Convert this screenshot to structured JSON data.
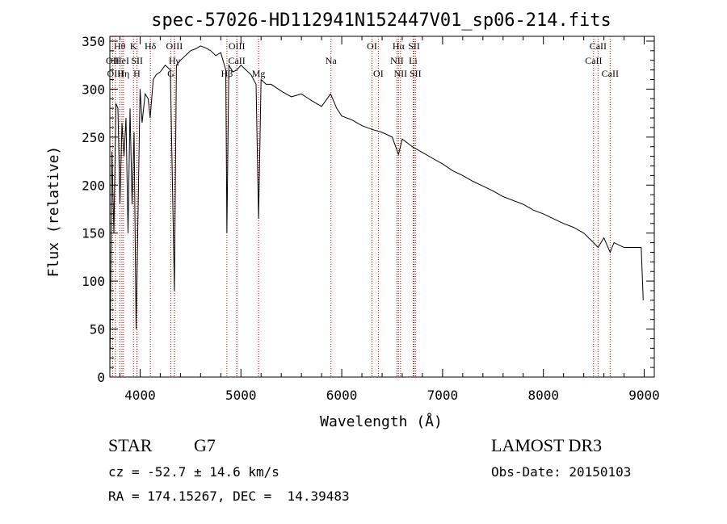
{
  "chart_data": {
    "type": "line",
    "title": "spec-57026-HD112941N152447V01_sp06-214.fits",
    "xlabel": "Wavelength (Å)",
    "ylabel": "Flux (relative)",
    "xlim": [
      3700,
      9100
    ],
    "ylim": [
      0,
      355
    ],
    "xticks": [
      4000,
      5000,
      6000,
      7000,
      8000,
      9000
    ],
    "yticks": [
      0,
      50,
      100,
      150,
      200,
      250,
      300,
      350
    ],
    "series": [
      {
        "name": "spectrum",
        "x": [
          3700,
          3720,
          3740,
          3760,
          3780,
          3800,
          3820,
          3840,
          3860,
          3880,
          3900,
          3920,
          3940,
          3960,
          3980,
          4000,
          4020,
          4050,
          4080,
          4100,
          4130,
          4160,
          4200,
          4250,
          4300,
          4340,
          4360,
          4400,
          4450,
          4500,
          4550,
          4600,
          4650,
          4700,
          4750,
          4800,
          4850,
          4861,
          4880,
          4920,
          4960,
          5000,
          5050,
          5100,
          5150,
          5175,
          5200,
          5250,
          5300,
          5400,
          5500,
          5600,
          5700,
          5800,
          5890,
          5950,
          6000,
          6100,
          6200,
          6300,
          6400,
          6500,
          6563,
          6600,
          6700,
          6800,
          6900,
          7000,
          7100,
          7200,
          7300,
          7400,
          7500,
          7600,
          7700,
          7800,
          7900,
          8000,
          8100,
          8200,
          8300,
          8400,
          8498,
          8542,
          8600,
          8662,
          8700,
          8800,
          8900,
          8970,
          8990
        ],
        "values": [
          5,
          235,
          150,
          285,
          280,
          180,
          265,
          230,
          270,
          150,
          280,
          180,
          255,
          50,
          170,
          300,
          265,
          295,
          290,
          270,
          310,
          315,
          318,
          325,
          320,
          90,
          325,
          330,
          335,
          340,
          342,
          345,
          343,
          340,
          335,
          338,
          320,
          150,
          325,
          318,
          320,
          325,
          320,
          315,
          305,
          165,
          310,
          305,
          305,
          298,
          292,
          295,
          288,
          282,
          295,
          280,
          272,
          268,
          262,
          258,
          255,
          250,
          232,
          248,
          240,
          234,
          228,
          222,
          215,
          210,
          204,
          199,
          194,
          188,
          184,
          180,
          174,
          170,
          165,
          160,
          156,
          150,
          140,
          135,
          145,
          130,
          140,
          135,
          135,
          135,
          80
        ]
      }
    ],
    "lines": [
      {
        "name": "Hθ",
        "wl": 3798,
        "row": 1
      },
      {
        "name": "OII",
        "wl": 3727,
        "row": 2
      },
      {
        "name": "OIII",
        "wl": 3755,
        "row": 3
      },
      {
        "name": "HeI",
        "wl": 3820,
        "row": 2
      },
      {
        "name": "Hη",
        "wl": 3835,
        "row": 3
      },
      {
        "name": "K",
        "wl": 3934,
        "row": 1
      },
      {
        "name": "SII",
        "wl": 3970,
        "row": 2
      },
      {
        "name": "H",
        "wl": 3968,
        "row": 3
      },
      {
        "name": "Hδ",
        "wl": 4102,
        "row": 1
      },
      {
        "name": "OIII",
        "wl": 4340,
        "row": 1
      },
      {
        "name": "Hγ",
        "wl": 4340,
        "row": 2
      },
      {
        "name": "G",
        "wl": 4305,
        "row": 3
      },
      {
        "name": "OIII",
        "wl": 4959,
        "row": 1
      },
      {
        "name": "CaII",
        "wl": 4959,
        "row": 2
      },
      {
        "name": "Hβ",
        "wl": 4861,
        "row": 3
      },
      {
        "name": "Mg",
        "wl": 5175,
        "row": 3
      },
      {
        "name": "Na",
        "wl": 5893,
        "row": 2
      },
      {
        "name": "OI",
        "wl": 6300,
        "row": 1
      },
      {
        "name": "OI",
        "wl": 6363,
        "row": 3
      },
      {
        "name": "Hα",
        "wl": 6563,
        "row": 1
      },
      {
        "name": "SII",
        "wl": 6717,
        "row": 1
      },
      {
        "name": "NII",
        "wl": 6548,
        "row": 2
      },
      {
        "name": "Li",
        "wl": 6708,
        "row": 2
      },
      {
        "name": "NII",
        "wl": 6583,
        "row": 3
      },
      {
        "name": "SII",
        "wl": 6731,
        "row": 3
      },
      {
        "name": "CaII",
        "wl": 8542,
        "row": 1
      },
      {
        "name": "CaII",
        "wl": 8498,
        "row": 2
      },
      {
        "name": "CaII",
        "wl": 8662,
        "row": 3
      }
    ]
  },
  "info": {
    "object_type": "STAR",
    "subclass": "G7",
    "survey": "LAMOST DR3",
    "cz": "cz = -52.7 ± 14.6 km/s",
    "obs_date": "Obs-Date: 20150103",
    "coords": "RA = 174.15267, DEC =  14.39483"
  },
  "colors": {
    "line_marker": "#c00000",
    "spectrum": "#000000"
  }
}
